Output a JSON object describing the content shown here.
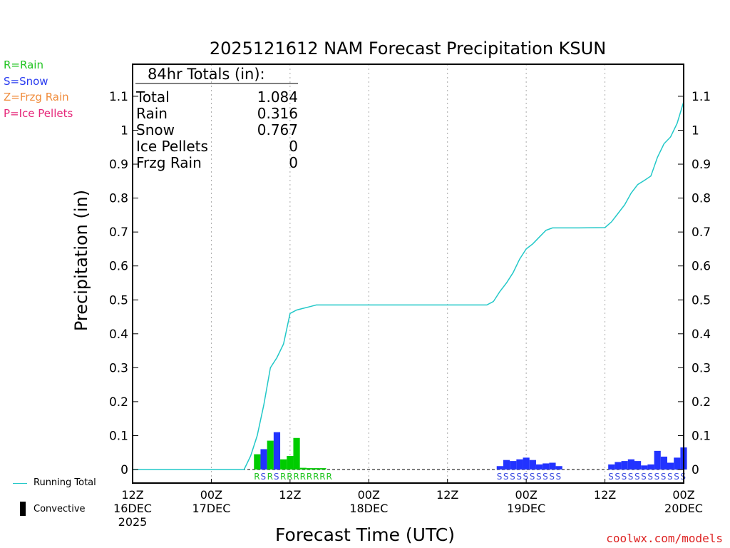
{
  "chart_data": {
    "type": "bar+line",
    "title": "2025121612 NAM Forecast Precipitation KSUN",
    "xlabel": "Forecast Time (UTC)",
    "ylabel": "Precipitation (in)",
    "ylim": [
      -0.04,
      1.19
    ],
    "y_ticks": [
      0,
      0.1,
      0.2,
      0.3,
      0.4,
      0.5,
      0.6,
      0.7,
      0.8,
      0.9,
      1,
      1.1
    ],
    "y_tick_labels": [
      "0",
      "0.1",
      "0.2",
      "0.3",
      "0.4",
      "0.5",
      "0.6",
      "0.7",
      "0.8",
      "0.9",
      "1",
      "1.1"
    ],
    "x_range_hours": [
      0,
      84
    ],
    "x_ticks": [
      {
        "hour": 0,
        "lines": [
          "12Z",
          "16DEC",
          "2025"
        ]
      },
      {
        "hour": 12,
        "lines": [
          "00Z",
          "17DEC"
        ]
      },
      {
        "hour": 24,
        "lines": [
          "12Z"
        ]
      },
      {
        "hour": 36,
        "lines": [
          "00Z",
          "18DEC"
        ]
      },
      {
        "hour": 48,
        "lines": [
          "12Z"
        ]
      },
      {
        "hour": 60,
        "lines": [
          "00Z",
          "19DEC"
        ]
      },
      {
        "hour": 72,
        "lines": [
          "12Z"
        ]
      },
      {
        "hour": 84,
        "lines": [
          "00Z",
          "20DEC"
        ]
      }
    ],
    "grid_hours": [
      12,
      24,
      36,
      48,
      60,
      72
    ],
    "totals_box": {
      "header": "84hr Totals (in):",
      "rows": [
        {
          "label": "Total",
          "value": "1.084"
        },
        {
          "label": "Rain",
          "value": "0.316"
        },
        {
          "label": "Snow",
          "value": "0.767"
        },
        {
          "label": "Ice Pellets",
          "value": "0"
        },
        {
          "label": "Frzg Rain",
          "value": "0"
        }
      ]
    },
    "bars": [
      {
        "hour": 19,
        "value": 0.045,
        "type": "R"
      },
      {
        "hour": 20,
        "value": 0.06,
        "type": "S"
      },
      {
        "hour": 21,
        "value": 0.085,
        "type": "R"
      },
      {
        "hour": 22,
        "value": 0.11,
        "type": "S"
      },
      {
        "hour": 23,
        "value": 0.03,
        "type": "R"
      },
      {
        "hour": 24,
        "value": 0.04,
        "type": "R"
      },
      {
        "hour": 25,
        "value": 0.093,
        "type": "R"
      },
      {
        "hour": 26,
        "value": 0.005,
        "type": "R"
      },
      {
        "hour": 27,
        "value": 0.004,
        "type": "R"
      },
      {
        "hour": 28,
        "value": 0.004,
        "type": "R"
      },
      {
        "hour": 29,
        "value": 0.004,
        "type": "R"
      },
      {
        "hour": 56,
        "value": 0.01,
        "type": "S"
      },
      {
        "hour": 57,
        "value": 0.028,
        "type": "S"
      },
      {
        "hour": 58,
        "value": 0.025,
        "type": "S"
      },
      {
        "hour": 59,
        "value": 0.03,
        "type": "S"
      },
      {
        "hour": 60,
        "value": 0.035,
        "type": "S"
      },
      {
        "hour": 61,
        "value": 0.028,
        "type": "S"
      },
      {
        "hour": 62,
        "value": 0.015,
        "type": "S"
      },
      {
        "hour": 63,
        "value": 0.018,
        "type": "S"
      },
      {
        "hour": 64,
        "value": 0.02,
        "type": "S"
      },
      {
        "hour": 65,
        "value": 0.01,
        "type": "S"
      },
      {
        "hour": 73,
        "value": 0.015,
        "type": "S"
      },
      {
        "hour": 74,
        "value": 0.022,
        "type": "S"
      },
      {
        "hour": 75,
        "value": 0.025,
        "type": "S"
      },
      {
        "hour": 76,
        "value": 0.03,
        "type": "S"
      },
      {
        "hour": 77,
        "value": 0.025,
        "type": "S"
      },
      {
        "hour": 78,
        "value": 0.012,
        "type": "S"
      },
      {
        "hour": 79,
        "value": 0.015,
        "type": "S"
      },
      {
        "hour": 80,
        "value": 0.055,
        "type": "S"
      },
      {
        "hour": 81,
        "value": 0.038,
        "type": "S"
      },
      {
        "hour": 82,
        "value": 0.02,
        "type": "S"
      },
      {
        "hour": 83,
        "value": 0.035,
        "type": "S"
      },
      {
        "hour": 84,
        "value": 0.065,
        "type": "S"
      }
    ],
    "type_strings": [
      {
        "start_hour": 18.5,
        "text": "RSRSRRRRRRRR"
      },
      {
        "start_hour": 55.5,
        "text": "SSSSSSSSSS"
      },
      {
        "start_hour": 72.5,
        "text": "SSSSSSSSSSSS"
      }
    ],
    "running_total": [
      [
        0,
        0
      ],
      [
        17,
        0
      ],
      [
        18,
        0.04
      ],
      [
        19,
        0.1
      ],
      [
        20,
        0.19
      ],
      [
        21,
        0.3
      ],
      [
        22,
        0.33
      ],
      [
        23,
        0.37
      ],
      [
        24,
        0.46
      ],
      [
        25,
        0.47
      ],
      [
        26,
        0.475
      ],
      [
        27,
        0.48
      ],
      [
        28,
        0.485
      ],
      [
        30,
        0.485
      ],
      [
        40,
        0.485
      ],
      [
        50,
        0.485
      ],
      [
        54,
        0.485
      ],
      [
        55,
        0.495
      ],
      [
        56,
        0.525
      ],
      [
        57,
        0.55
      ],
      [
        58,
        0.58
      ],
      [
        59,
        0.62
      ],
      [
        60,
        0.65
      ],
      [
        61,
        0.665
      ],
      [
        62,
        0.685
      ],
      [
        63,
        0.705
      ],
      [
        64,
        0.712
      ],
      [
        66,
        0.712
      ],
      [
        68,
        0.712
      ],
      [
        72,
        0.713
      ],
      [
        73,
        0.73
      ],
      [
        74,
        0.755
      ],
      [
        75,
        0.78
      ],
      [
        76,
        0.815
      ],
      [
        77,
        0.84
      ],
      [
        78,
        0.852
      ],
      [
        79,
        0.865
      ],
      [
        80,
        0.92
      ],
      [
        81,
        0.96
      ],
      [
        82,
        0.98
      ],
      [
        83,
        1.02
      ],
      [
        84,
        1.084
      ]
    ]
  },
  "legend_top": [
    {
      "text": "R=Rain",
      "color": "#22c422"
    },
    {
      "text": "S=Snow",
      "color": "#2a3cf0"
    },
    {
      "text": "Z=Frzg Rain",
      "color": "#f08c3c"
    },
    {
      "text": "P=Ice Pellets",
      "color": "#e6287a"
    }
  ],
  "legend_bottom": {
    "running_total": "Running Total",
    "convective": "Convective"
  },
  "colors": {
    "rain": "#00cc00",
    "snow": "#2233ff",
    "line": "#22c8c8",
    "grid": "#aaaaaa",
    "type_rain": "#22c422",
    "type_snow": "#3a4ae0"
  },
  "watermark": "coolwx.com/models"
}
